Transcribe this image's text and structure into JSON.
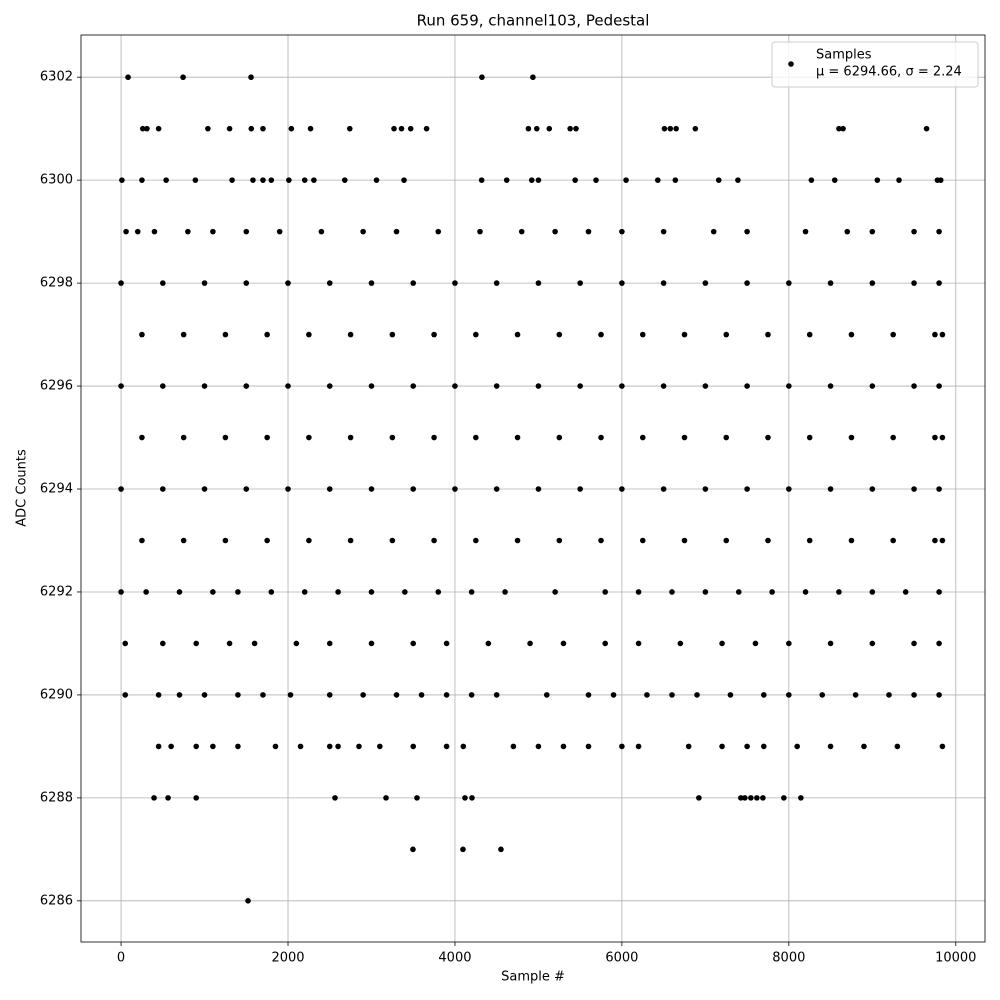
{
  "chart_data": {
    "type": "scatter",
    "title": "Run 659, channel103, Pedestal",
    "x_label": "Sample #",
    "y_label": "ADC Counts",
    "xlim": [
      -480,
      10350
    ],
    "ylim": [
      6285.2,
      6302.82
    ],
    "xticks": [
      0,
      2000,
      4000,
      6000,
      8000,
      10000
    ],
    "yticks": [
      6286,
      6288,
      6290,
      6292,
      6294,
      6296,
      6298,
      6300,
      6302
    ],
    "grid": true,
    "legend_position": "upper right",
    "legend_note": "μ = 6294.66, σ = 2.24",
    "series": [
      {
        "name": "Samples",
        "color": "#000000",
        "x": [
          84,
          743,
          1557,
          4323,
          4934,
          260,
          310,
          450,
          1040,
          1300,
          1560,
          1700,
          2040,
          2270,
          2740,
          3270,
          3360,
          3470,
          3660,
          4880,
          4980,
          5130,
          5380,
          5450,
          6510,
          6580,
          6650,
          6880,
          8600,
          8650,
          9650,
          10,
          250,
          540,
          890,
          1330,
          1580,
          1700,
          1800,
          2010,
          2200,
          2310,
          2680,
          3060,
          3390,
          4320,
          4620,
          4920,
          5000,
          5440,
          5690,
          6050,
          6430,
          6640,
          7160,
          7390,
          8270,
          8550,
          9060,
          9320,
          9780,
          9820,
          60,
          200,
          400,
          800,
          1100,
          1500,
          1900,
          2400,
          2900,
          3300,
          3800,
          4300,
          4800,
          5200,
          5600,
          6000,
          6500,
          7100,
          7500,
          8200,
          8700,
          9000,
          9500,
          9800,
          0,
          500,
          1000,
          1500,
          2000,
          2500,
          3000,
          3500,
          4000,
          4500,
          5000,
          5500,
          6000,
          6500,
          7000,
          7500,
          8000,
          8500,
          9000,
          9500,
          9800,
          250,
          750,
          1250,
          1750,
          2250,
          2750,
          3250,
          3750,
          4250,
          4750,
          5250,
          5750,
          6250,
          6750,
          7250,
          7750,
          8250,
          8750,
          9250,
          9750,
          9840,
          0,
          500,
          1000,
          1500,
          2000,
          2500,
          3000,
          3500,
          4000,
          4500,
          5000,
          5500,
          6000,
          6500,
          7000,
          7500,
          8000,
          8500,
          9000,
          9500,
          9800,
          250,
          750,
          1250,
          1750,
          2250,
          2750,
          3250,
          3750,
          4250,
          4750,
          5250,
          5750,
          6250,
          6750,
          7250,
          7750,
          8250,
          8750,
          9250,
          9750,
          9840,
          0,
          500,
          1000,
          1500,
          2000,
          2500,
          3000,
          3500,
          4000,
          4500,
          5000,
          5500,
          6000,
          6500,
          7000,
          7500,
          8000,
          8500,
          9000,
          9500,
          9800,
          250,
          750,
          1250,
          1750,
          2250,
          2750,
          3250,
          3750,
          4250,
          4750,
          5250,
          5750,
          6250,
          6750,
          7250,
          7750,
          8250,
          8750,
          9250,
          9750,
          9840,
          0,
          300,
          700,
          1100,
          1400,
          1800,
          2200,
          2600,
          3000,
          3400,
          3800,
          4200,
          4600,
          5200,
          5800,
          6200,
          6600,
          7000,
          7400,
          7800,
          8200,
          8600,
          9000,
          9400,
          9800,
          50,
          500,
          900,
          1300,
          1600,
          2100,
          2500,
          3000,
          3500,
          3900,
          4400,
          4900,
          5300,
          5800,
          6200,
          6700,
          7200,
          7600,
          8000,
          8500,
          9000,
          9500,
          9800,
          50,
          450,
          700,
          1000,
          1400,
          1700,
          2030,
          2500,
          2900,
          3300,
          3600,
          3900,
          4200,
          4500,
          5100,
          5600,
          5900,
          6300,
          6600,
          6900,
          7300,
          7700,
          8000,
          8400,
          8800,
          9200,
          9500,
          9800,
          450,
          600,
          900,
          1100,
          1400,
          1850,
          2150,
          2500,
          2600,
          2850,
          3100,
          3500,
          3900,
          4100,
          4700,
          5000,
          5300,
          5600,
          6000,
          6200,
          6800,
          7200,
          7500,
          7700,
          8100,
          8500,
          8900,
          9300,
          9840,
          395,
          563,
          900,
          2563,
          3174,
          3545,
          4120,
          4204,
          6922,
          7425,
          7473,
          7545,
          7617,
          7689,
          7940,
          8144,
          3497,
          4096,
          4551,
          1521
        ],
        "values": [
          6302,
          6302,
          6302,
          6302,
          6302,
          6301,
          6301,
          6301,
          6301,
          6301,
          6301,
          6301,
          6301,
          6301,
          6301,
          6301,
          6301,
          6301,
          6301,
          6301,
          6301,
          6301,
          6301,
          6301,
          6301,
          6301,
          6301,
          6301,
          6301,
          6301,
          6301,
          6300,
          6300,
          6300,
          6300,
          6300,
          6300,
          6300,
          6300,
          6300,
          6300,
          6300,
          6300,
          6300,
          6300,
          6300,
          6300,
          6300,
          6300,
          6300,
          6300,
          6300,
          6300,
          6300,
          6300,
          6300,
          6300,
          6300,
          6300,
          6300,
          6300,
          6300,
          6299,
          6299,
          6299,
          6299,
          6299,
          6299,
          6299,
          6299,
          6299,
          6299,
          6299,
          6299,
          6299,
          6299,
          6299,
          6299,
          6299,
          6299,
          6299,
          6299,
          6299,
          6299,
          6299,
          6299,
          6298,
          6298,
          6298,
          6298,
          6298,
          6298,
          6298,
          6298,
          6298,
          6298,
          6298,
          6298,
          6298,
          6298,
          6298,
          6298,
          6298,
          6298,
          6298,
          6298,
          6298,
          6297,
          6297,
          6297,
          6297,
          6297,
          6297,
          6297,
          6297,
          6297,
          6297,
          6297,
          6297,
          6297,
          6297,
          6297,
          6297,
          6297,
          6297,
          6297,
          6297,
          6297,
          6296,
          6296,
          6296,
          6296,
          6296,
          6296,
          6296,
          6296,
          6296,
          6296,
          6296,
          6296,
          6296,
          6296,
          6296,
          6296,
          6296,
          6296,
          6296,
          6296,
          6296,
          6295,
          6295,
          6295,
          6295,
          6295,
          6295,
          6295,
          6295,
          6295,
          6295,
          6295,
          6295,
          6295,
          6295,
          6295,
          6295,
          6295,
          6295,
          6295,
          6295,
          6295,
          6294,
          6294,
          6294,
          6294,
          6294,
          6294,
          6294,
          6294,
          6294,
          6294,
          6294,
          6294,
          6294,
          6294,
          6294,
          6294,
          6294,
          6294,
          6294,
          6294,
          6294,
          6293,
          6293,
          6293,
          6293,
          6293,
          6293,
          6293,
          6293,
          6293,
          6293,
          6293,
          6293,
          6293,
          6293,
          6293,
          6293,
          6293,
          6293,
          6293,
          6293,
          6293,
          6292,
          6292,
          6292,
          6292,
          6292,
          6292,
          6292,
          6292,
          6292,
          6292,
          6292,
          6292,
          6292,
          6292,
          6292,
          6292,
          6292,
          6292,
          6292,
          6292,
          6292,
          6292,
          6292,
          6292,
          6292,
          6291,
          6291,
          6291,
          6291,
          6291,
          6291,
          6291,
          6291,
          6291,
          6291,
          6291,
          6291,
          6291,
          6291,
          6291,
          6291,
          6291,
          6291,
          6291,
          6291,
          6291,
          6291,
          6291,
          6290,
          6290,
          6290,
          6290,
          6290,
          6290,
          6290,
          6290,
          6290,
          6290,
          6290,
          6290,
          6290,
          6290,
          6290,
          6290,
          6290,
          6290,
          6290,
          6290,
          6290,
          6290,
          6290,
          6290,
          6290,
          6290,
          6290,
          6290,
          6289,
          6289,
          6289,
          6289,
          6289,
          6289,
          6289,
          6289,
          6289,
          6289,
          6289,
          6289,
          6289,
          6289,
          6289,
          6289,
          6289,
          6289,
          6289,
          6289,
          6289,
          6289,
          6289,
          6289,
          6289,
          6289,
          6289,
          6289,
          6289,
          6288,
          6288,
          6288,
          6288,
          6288,
          6288,
          6288,
          6288,
          6288,
          6288,
          6288,
          6288,
          6288,
          6288,
          6288,
          6288,
          6287,
          6287,
          6287,
          6286
        ]
      }
    ]
  }
}
